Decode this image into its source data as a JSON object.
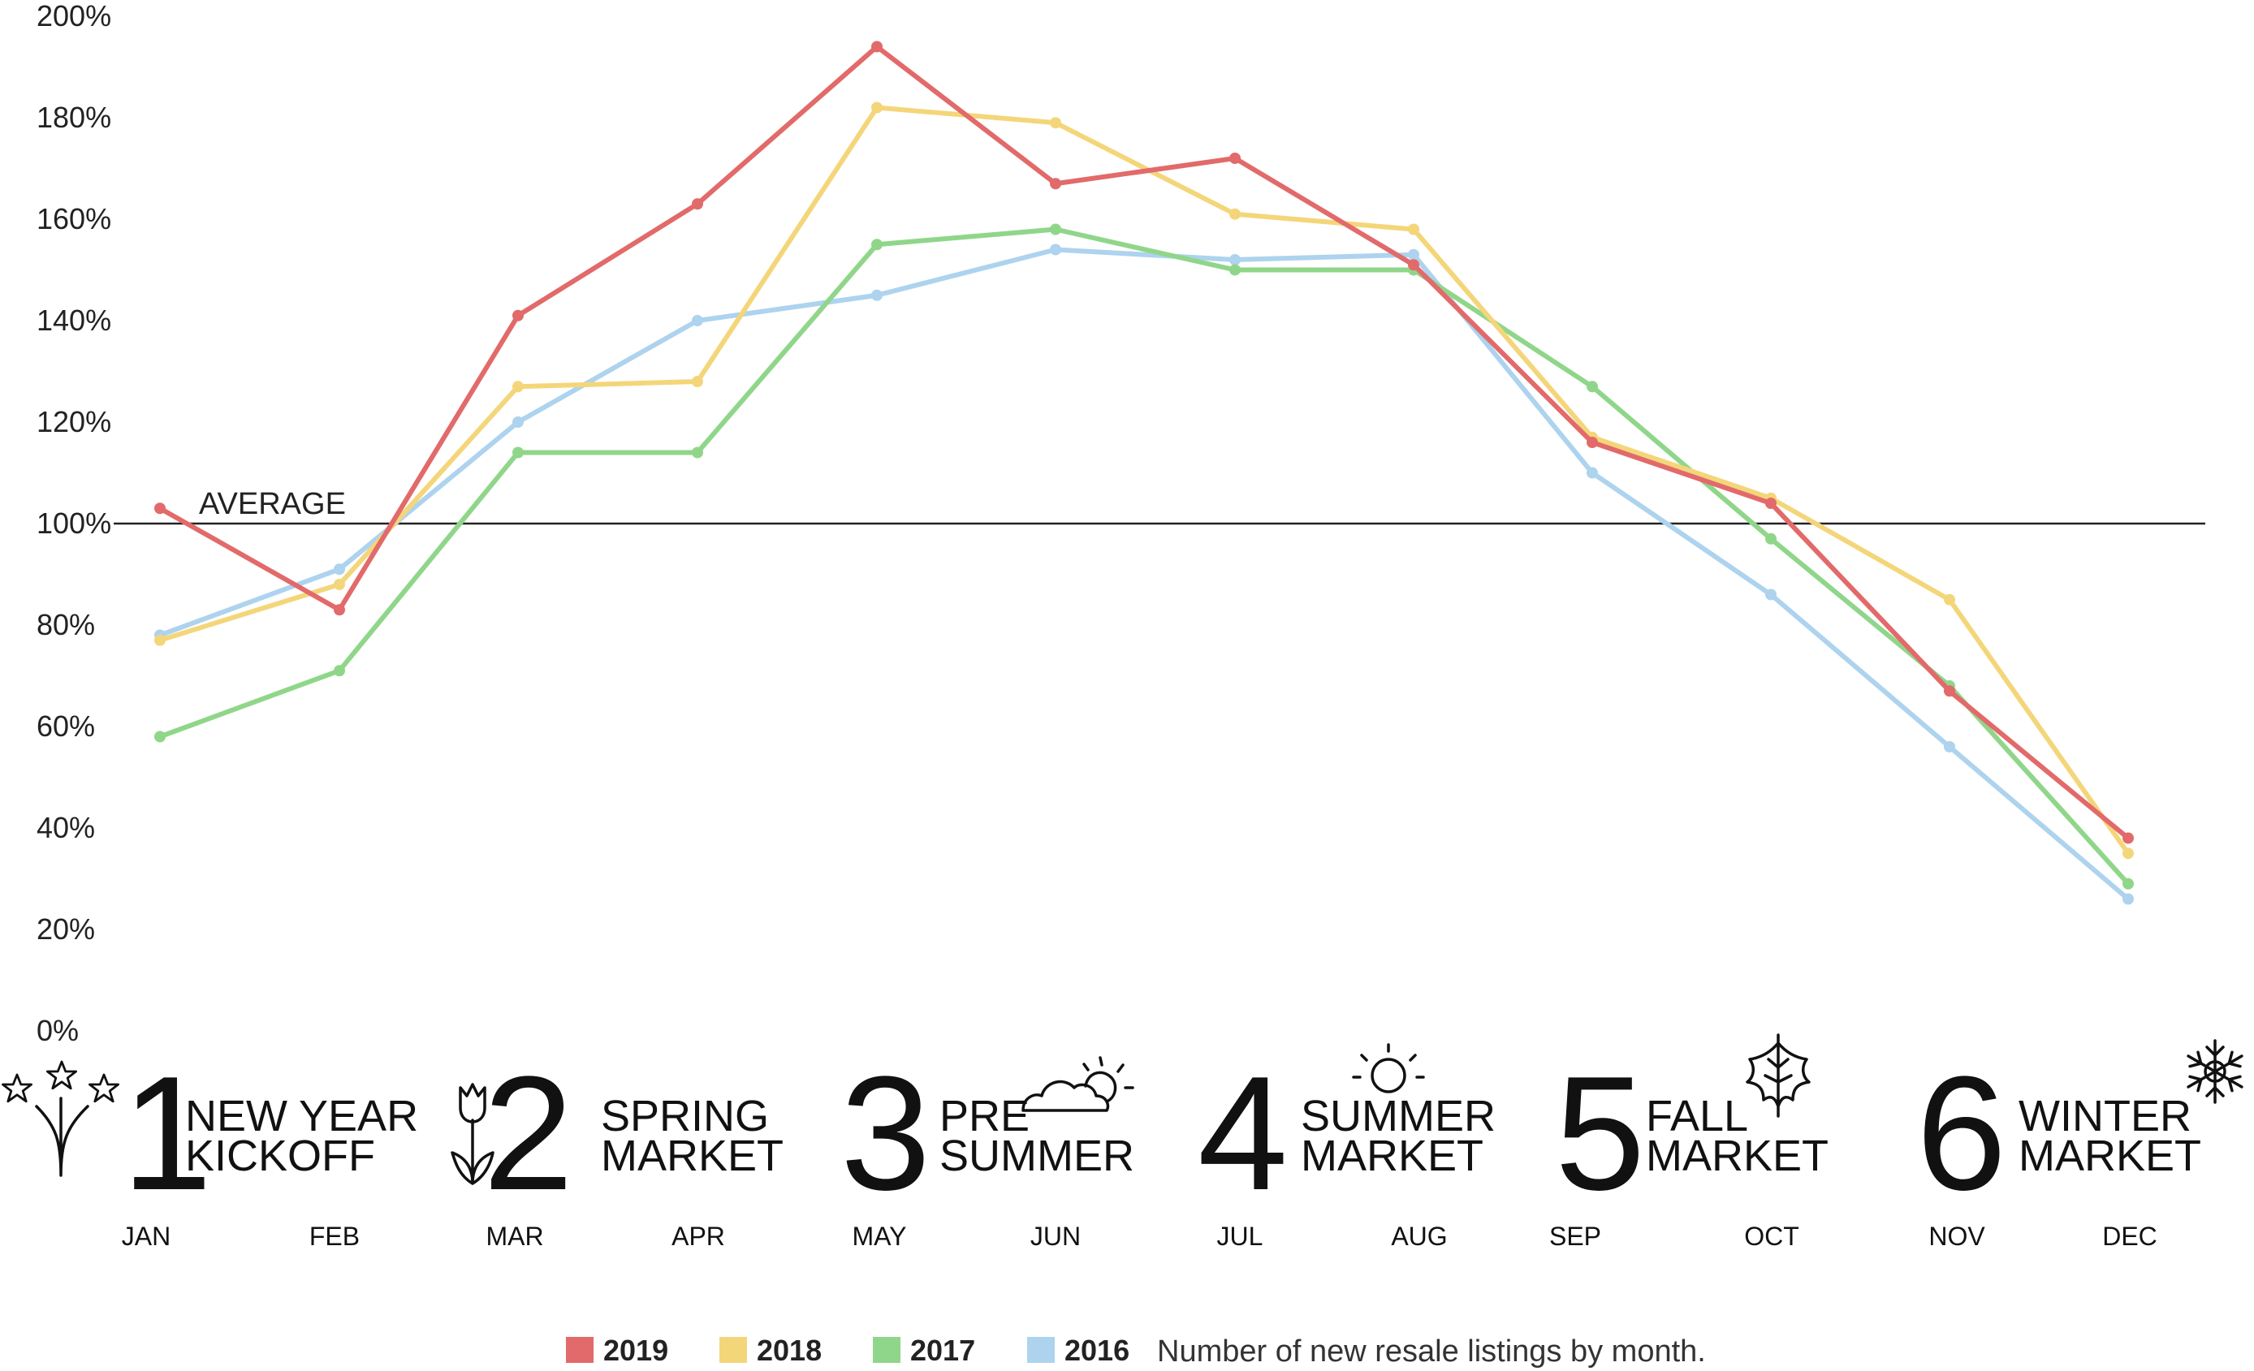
{
  "chart_data": {
    "type": "line",
    "categories": [
      "JAN",
      "FEB",
      "MAR",
      "APR",
      "MAY",
      "JUN",
      "JUL",
      "AUG",
      "SEP",
      "OCT",
      "NOV",
      "DEC"
    ],
    "series": [
      {
        "name": "2019",
        "color": "#e26a6a",
        "values": [
          103,
          83,
          141,
          163,
          194,
          167,
          172,
          151,
          116,
          104,
          67,
          38
        ]
      },
      {
        "name": "2018",
        "color": "#f4d67a",
        "values": [
          77,
          88,
          127,
          128,
          182,
          179,
          161,
          158,
          117,
          105,
          85,
          35
        ]
      },
      {
        "name": "2017",
        "color": "#90d68a",
        "values": [
          58,
          71,
          114,
          114,
          155,
          158,
          150,
          150,
          127,
          97,
          68,
          29
        ]
      },
      {
        "name": "2016",
        "color": "#add3ee",
        "values": [
          78,
          91,
          120,
          140,
          145,
          154,
          152,
          153,
          110,
          86,
          56,
          26
        ]
      }
    ],
    "ylim": [
      0,
      200
    ],
    "yticks": [
      0,
      20,
      40,
      60,
      80,
      100,
      120,
      140,
      160,
      180,
      200
    ],
    "ytick_labels": [
      "0%",
      "20%",
      "40%",
      "60%",
      "80%",
      "100%",
      "120%",
      "140%",
      "160%",
      "180%",
      "200%"
    ],
    "reference_line": {
      "value": 100,
      "label": "AVERAGE"
    },
    "caption": "Number of new resale listings by month.",
    "legend_placement": "bottom",
    "grid": false
  },
  "seasons": [
    {
      "number": "1",
      "line1": "NEW YEAR",
      "line2": "KICKOFF",
      "icon": "fireworks-icon"
    },
    {
      "number": "2",
      "line1": "SPRING",
      "line2": "MARKET",
      "icon": "tulip-icon"
    },
    {
      "number": "3",
      "line1": "PRE",
      "line2": "SUMMER",
      "icon": "cloud-sun-icon"
    },
    {
      "number": "4",
      "line1": "SUMMER",
      "line2": "MARKET",
      "icon": "sun-icon"
    },
    {
      "number": "5",
      "line1": "FALL",
      "line2": "MARKET",
      "icon": "leaf-icon"
    },
    {
      "number": "6",
      "line1": "WINTER",
      "line2": "MARKET",
      "icon": "snowflake-icon"
    }
  ]
}
